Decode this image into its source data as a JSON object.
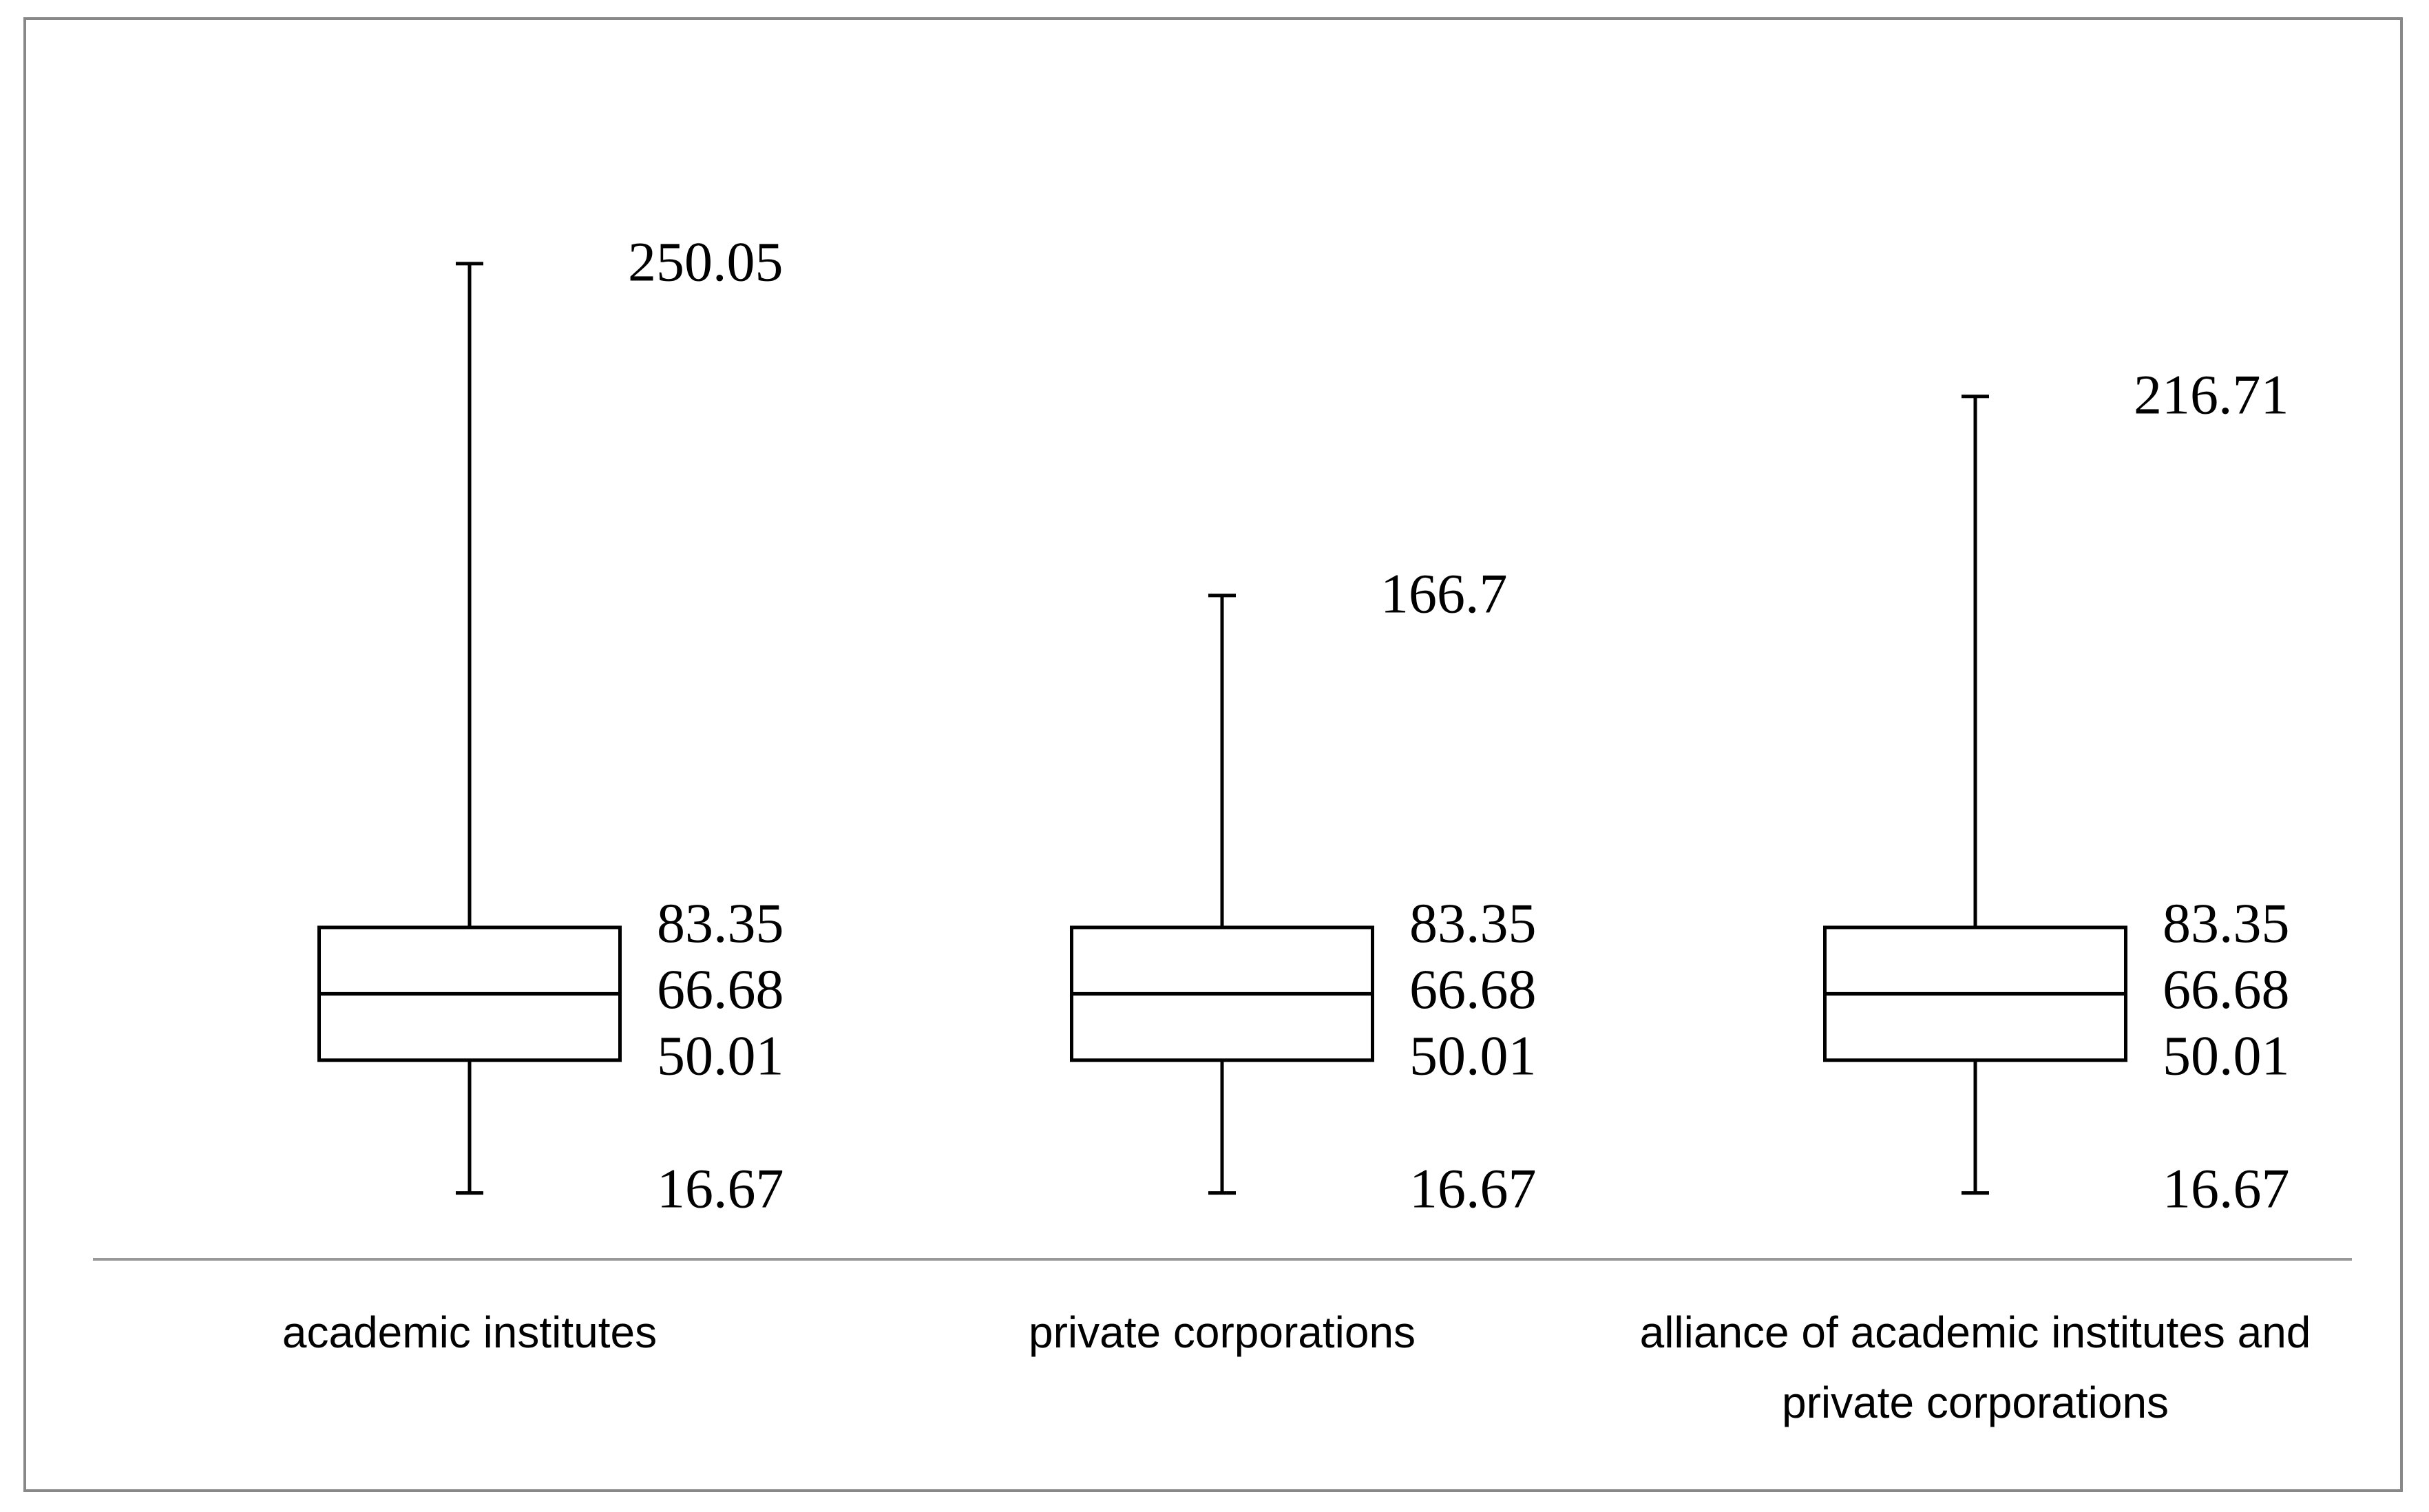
{
  "chart_data": {
    "type": "box",
    "categories": [
      "academic institutes",
      "private corporations",
      "alliance of academic institutes and private corporations"
    ],
    "min": [
      16.67,
      16.67,
      16.67
    ],
    "q1": [
      50.01,
      50.01,
      50.01
    ],
    "median": [
      66.68,
      66.68,
      66.68
    ],
    "q3": [
      83.35,
      83.35,
      83.35
    ],
    "max": [
      250.05,
      166.7,
      216.71
    ],
    "ylim": [
      0,
      300
    ]
  }
}
